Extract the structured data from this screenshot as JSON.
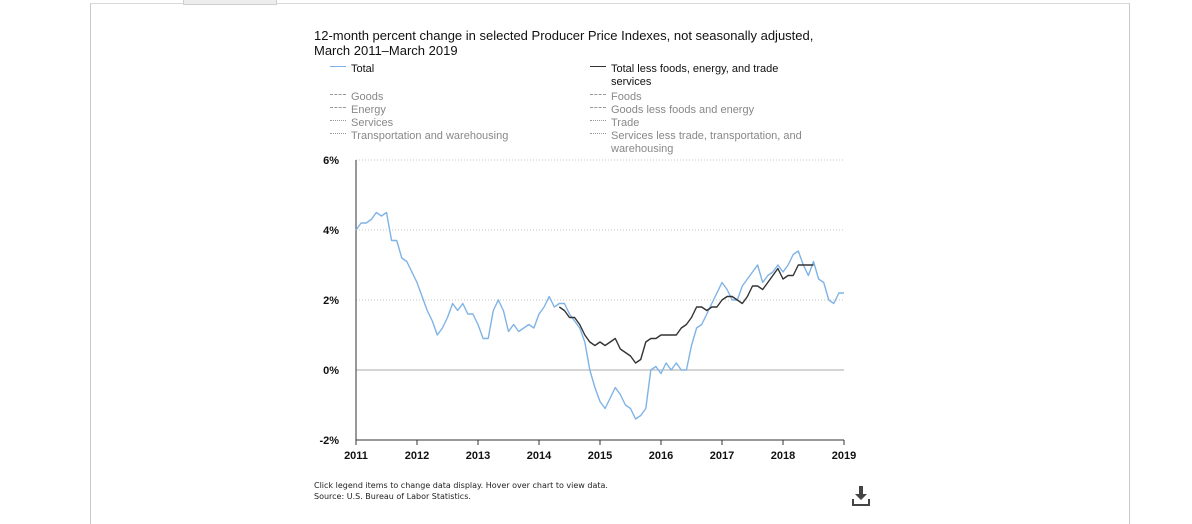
{
  "chart_data": {
    "type": "line",
    "title": "12-month percent change in selected Producer Price Indexes, not seasonally adjusted, March 2011–March 2019",
    "xlabel": "",
    "ylabel": "",
    "xlim": [
      2011.0,
      2019.0
    ],
    "ylim": [
      -2,
      6
    ],
    "y_ticks": [
      6,
      4,
      2,
      0,
      -2
    ],
    "y_tick_labels": [
      "6%",
      "4%",
      "2%",
      "0%",
      "-2%"
    ],
    "x_tick_labels": [
      "2011",
      "2012",
      "2013",
      "2014",
      "2015",
      "2016",
      "2017",
      "2018",
      "2019"
    ],
    "grid": "horizontal dotted",
    "legend_placement": "top",
    "series": [
      {
        "name": "Total",
        "color": "#7fb3e6",
        "style": "solid",
        "x": [
          2011.0,
          2011.083,
          2011.167,
          2011.25,
          2011.333,
          2011.417,
          2011.5,
          2011.583,
          2011.667,
          2011.75,
          2011.833,
          2011.917,
          2012.0,
          2012.083,
          2012.167,
          2012.25,
          2012.333,
          2012.417,
          2012.5,
          2012.583,
          2012.667,
          2012.75,
          2012.833,
          2012.917,
          2013.0,
          2013.083,
          2013.167,
          2013.25,
          2013.333,
          2013.417,
          2013.5,
          2013.583,
          2013.667,
          2013.75,
          2013.833,
          2013.917,
          2014.0,
          2014.083,
          2014.167,
          2014.25,
          2014.333,
          2014.417,
          2014.5,
          2014.583,
          2014.667,
          2014.75,
          2014.833,
          2014.917,
          2015.0,
          2015.083,
          2015.167,
          2015.25,
          2015.333,
          2015.417,
          2015.5,
          2015.583,
          2015.667,
          2015.75,
          2015.833,
          2015.917,
          2016.0,
          2016.083,
          2016.167,
          2016.25,
          2016.333,
          2016.417,
          2016.5,
          2016.583,
          2016.667,
          2016.75,
          2016.833,
          2016.917,
          2017.0,
          2017.083,
          2017.167,
          2017.25,
          2017.333,
          2017.417,
          2017.5,
          2017.583,
          2017.667,
          2017.75,
          2017.833,
          2017.917,
          2018.0,
          2018.083,
          2018.167,
          2018.25,
          2018.333,
          2018.417,
          2018.5,
          2018.583,
          2018.667,
          2018.75,
          2018.833,
          2018.917,
          2019.0
        ],
        "values": [
          4.0,
          4.2,
          4.2,
          4.3,
          4.5,
          4.4,
          4.5,
          3.7,
          3.7,
          3.2,
          3.1,
          2.8,
          2.5,
          2.1,
          1.7,
          1.4,
          1.0,
          1.2,
          1.5,
          1.9,
          1.7,
          1.9,
          1.6,
          1.6,
          1.3,
          0.9,
          0.9,
          1.7,
          2.0,
          1.7,
          1.1,
          1.3,
          1.1,
          1.2,
          1.3,
          1.2,
          1.6,
          1.8,
          2.1,
          1.8,
          1.9,
          1.9,
          1.6,
          1.4,
          1.2,
          0.8,
          0.0,
          -0.5,
          -0.9,
          -1.1,
          -0.8,
          -0.5,
          -0.7,
          -1.0,
          -1.1,
          -1.4,
          -1.3,
          -1.1,
          0.0,
          0.1,
          -0.1,
          0.2,
          0.0,
          0.2,
          0.0,
          0.0,
          0.7,
          1.2,
          1.3,
          1.6,
          1.9,
          2.2,
          2.5,
          2.3,
          2.0,
          2.0,
          2.4,
          2.6,
          2.8,
          3.0,
          2.5,
          2.7,
          2.8,
          3.0,
          2.8,
          3.0,
          3.3,
          3.4,
          3.0,
          2.7,
          3.1,
          2.6,
          2.5,
          2.0,
          1.9,
          2.2,
          2.2
        ]
      },
      {
        "name": "Total less foods, energy, and trade services",
        "color": "#333333",
        "style": "solid",
        "x": [
          2014.333,
          2014.417,
          2014.5,
          2014.583,
          2014.667,
          2014.75,
          2014.833,
          2014.917,
          2015.0,
          2015.083,
          2015.167,
          2015.25,
          2015.333,
          2015.417,
          2015.5,
          2015.583,
          2015.667,
          2015.75,
          2015.833,
          2015.917,
          2016.0,
          2016.083,
          2016.167,
          2016.25,
          2016.333,
          2016.417,
          2016.5,
          2016.583,
          2016.667,
          2016.75,
          2016.833,
          2016.917,
          2017.0,
          2017.083,
          2017.167,
          2017.25,
          2017.333,
          2017.417,
          2017.5,
          2017.583,
          2017.667,
          2017.75,
          2017.833,
          2017.917,
          2018.0,
          2018.083,
          2018.167,
          2018.25,
          2018.333,
          2018.417,
          2018.5
        ],
        "values": [
          1.8,
          1.7,
          1.5,
          1.5,
          1.3,
          1.0,
          0.8,
          0.7,
          0.8,
          0.7,
          0.8,
          0.9,
          0.6,
          0.5,
          0.4,
          0.2,
          0.3,
          0.8,
          0.9,
          0.9,
          1.0,
          1.0,
          1.0,
          1.0,
          1.2,
          1.3,
          1.5,
          1.8,
          1.8,
          1.7,
          1.8,
          1.8,
          2.0,
          2.1,
          2.1,
          2.0,
          1.9,
          2.1,
          2.4,
          2.4,
          2.3,
          2.5,
          2.7,
          2.9,
          2.6,
          2.7,
          2.7,
          3.0,
          3.0,
          3.0,
          3.0
        ]
      }
    ]
  },
  "legend": {
    "left": [
      {
        "label": "Total",
        "style": "solid-blue",
        "active": true
      },
      {
        "label": "Goods",
        "style": "dashed",
        "active": false
      },
      {
        "label": "Energy",
        "style": "dashed",
        "active": false
      },
      {
        "label": "Services",
        "style": "dotted",
        "active": false
      },
      {
        "label": "Transportation and warehousing",
        "style": "dotted",
        "active": false
      }
    ],
    "right": [
      {
        "label": "Total less foods, energy, and trade services",
        "style": "solid-black",
        "active": true
      },
      {
        "label": "Foods",
        "style": "dashed",
        "active": false
      },
      {
        "label": "Goods less foods and energy",
        "style": "dashed",
        "active": false
      },
      {
        "label": "Trade",
        "style": "dotted",
        "active": false
      },
      {
        "label": "Services less trade, transportation, and warehousing",
        "style": "dotted",
        "active": false
      }
    ]
  },
  "notes": {
    "instructions": "Click legend items to change data display. Hover over chart to view data.",
    "source": "Source: U.S. Bureau of Labor Statistics."
  },
  "icons": {
    "download": "download-icon"
  }
}
